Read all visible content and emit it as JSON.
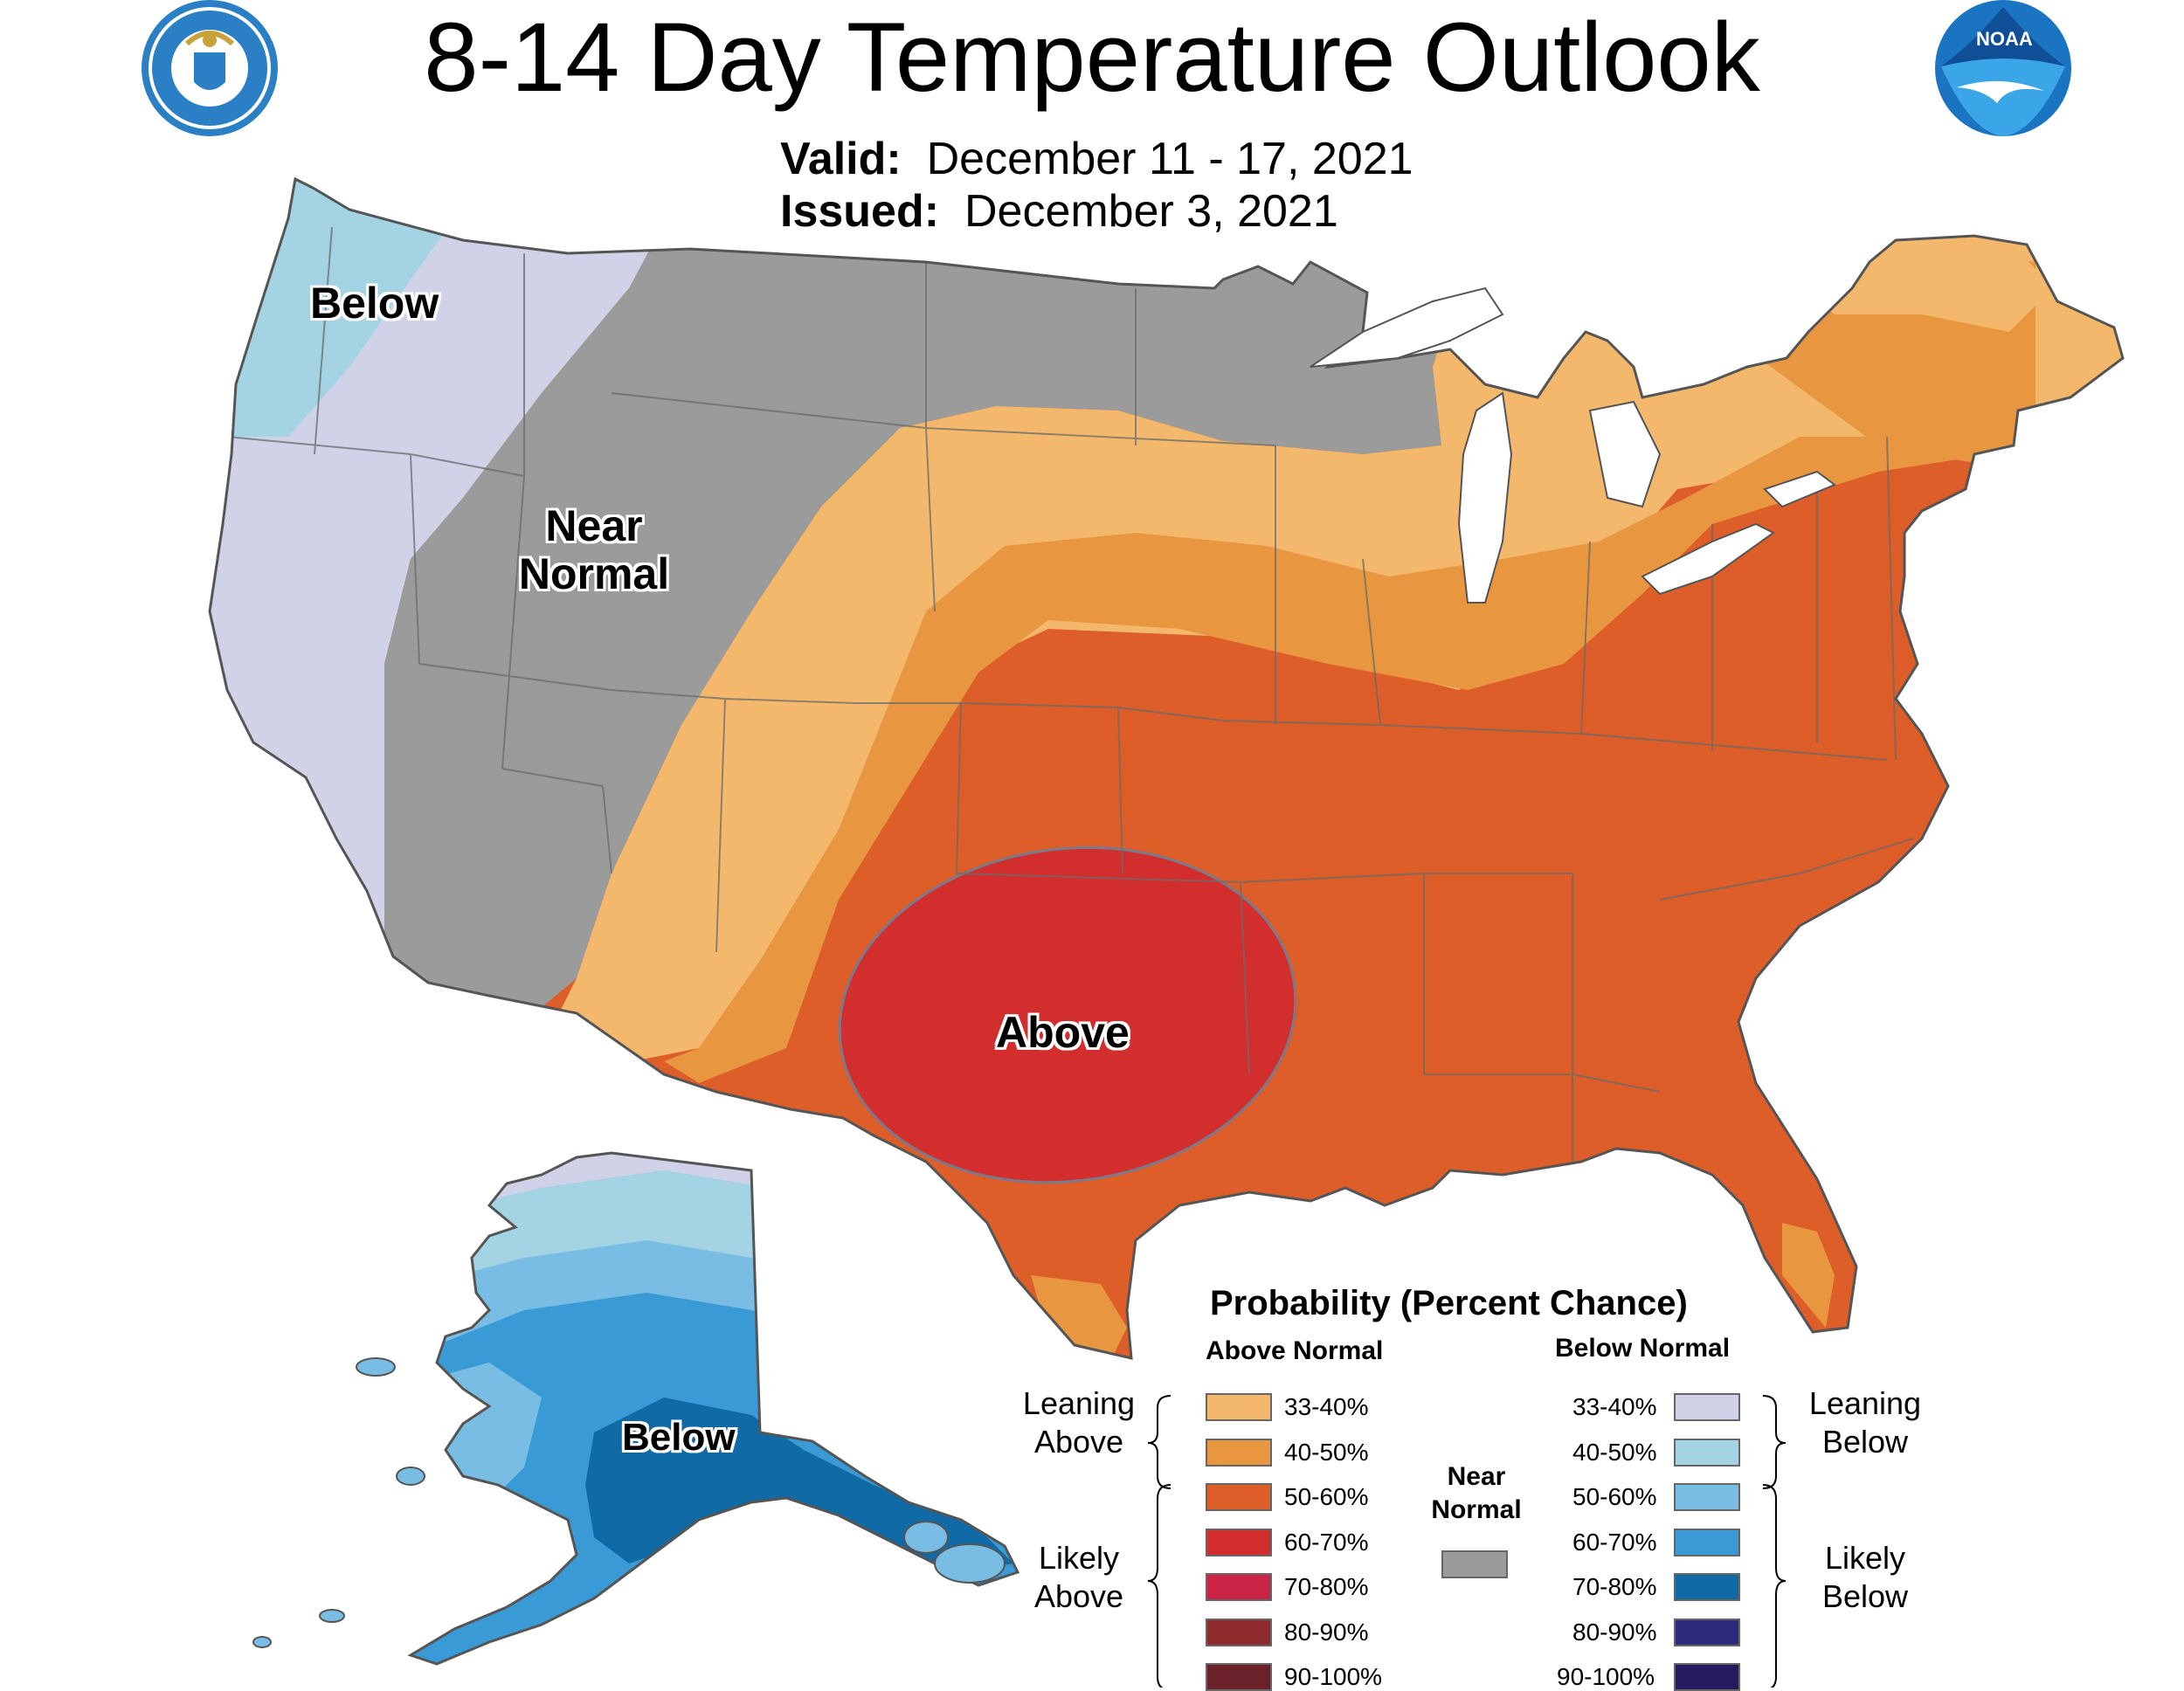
{
  "header": {
    "title": "8-14 Day Temperature Outlook",
    "valid_label": "Valid:",
    "valid_dates": "December 11 - 17, 2021",
    "issued_label": "Issued:",
    "issued_date": "December 3, 2021",
    "logo_left_text": "DEPARTMENT OF COMMERCE · UNITED STATES OF AMERICA",
    "logo_right_text": "NOAA"
  },
  "map_labels": {
    "northwest": "Below",
    "near_normal_1": "Near",
    "near_normal_2": "Normal",
    "above": "Above",
    "alaska": "Below"
  },
  "legend": {
    "title": "Probability (Percent Chance)",
    "above_header": "Above Normal",
    "below_header": "Below Normal",
    "leaning_above_1": "Leaning",
    "leaning_above_2": "Above",
    "likely_above_1": "Likely",
    "likely_above_2": "Above",
    "leaning_below_1": "Leaning",
    "leaning_below_2": "Below",
    "likely_below_1": "Likely",
    "likely_below_2": "Below",
    "near_normal_1": "Near",
    "near_normal_2": "Normal",
    "near_normal_color": "#9b9b9b",
    "above": [
      {
        "range": "33-40%",
        "color": "#f3b86b"
      },
      {
        "range": "40-50%",
        "color": "#e8963f"
      },
      {
        "range": "50-60%",
        "color": "#dd5e28"
      },
      {
        "range": "60-70%",
        "color": "#d32e2e"
      },
      {
        "range": "70-80%",
        "color": "#cc2348"
      },
      {
        "range": "80-90%",
        "color": "#8f2a2d"
      },
      {
        "range": "90-100%",
        "color": "#6b2128"
      }
    ],
    "below": [
      {
        "range": "33-40%",
        "color": "#d0d2e8"
      },
      {
        "range": "40-50%",
        "color": "#a4d3e3"
      },
      {
        "range": "50-60%",
        "color": "#79bde4"
      },
      {
        "range": "60-70%",
        "color": "#3a9ad6"
      },
      {
        "range": "70-80%",
        "color": "#0f6aa5"
      },
      {
        "range": "80-90%",
        "color": "#2f2a7c"
      },
      {
        "range": "90-100%",
        "color": "#231a60"
      }
    ]
  }
}
